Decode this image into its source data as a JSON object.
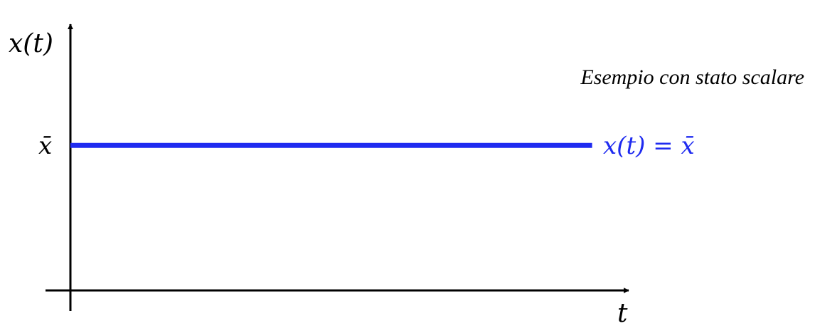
{
  "chart_data": {
    "type": "line",
    "title": "",
    "annotation": "Esempio con stato scalare",
    "xlabel": "t",
    "ylabel": "x(t)",
    "y_tick_label": "x̄",
    "series": [
      {
        "name": "x(t) = x̄",
        "x": [
          0,
          1
        ],
        "y": [
          1,
          1
        ],
        "color": "#1f2bf0"
      }
    ],
    "xlim": [
      0,
      1.07
    ],
    "ylim": [
      -0.15,
      1.96
    ],
    "grid": false,
    "legend": "none",
    "axis_color": "#000000"
  }
}
